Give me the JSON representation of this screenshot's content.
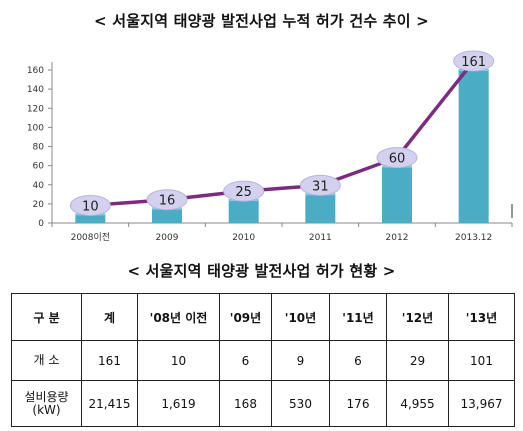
{
  "titles": {
    "chart": "< 서울지역 태양광 발전사업 누적 허가 건수 추이 >",
    "table": "< 서울지역 태양광 발전사업 허가 현황 >"
  },
  "colors": {
    "bar": "#4bacc6",
    "line": "#7b2c7e",
    "marker": "#d4d1ee"
  },
  "chart_data": {
    "type": "bar",
    "categories": [
      "2008이전",
      "2009",
      "2010",
      "2011",
      "2012",
      "2013.12"
    ],
    "values": [
      10,
      16,
      25,
      31,
      60,
      161
    ],
    "data_labels": [
      "10",
      "16",
      "25",
      "31",
      "60",
      "161"
    ],
    "ylim": [
      0,
      160
    ],
    "yticks": [
      "0",
      "20",
      "40",
      "60",
      "80",
      "100",
      "120",
      "140",
      "160"
    ],
    "overlay": "line",
    "grid": false,
    "legend": "none"
  },
  "table": {
    "headers": [
      "구 분",
      "계",
      "'08년 이전",
      "'09년",
      "'10년",
      "'11년",
      "'12년",
      "'13년"
    ],
    "rows": [
      {
        "label": [
          "개 소"
        ],
        "cells": [
          "161",
          "10",
          "6",
          "9",
          "6",
          "29",
          "101"
        ]
      },
      {
        "label": [
          "설비용량",
          "(kW)"
        ],
        "cells": [
          "21,415",
          "1,619",
          "168",
          "530",
          "176",
          "4,955",
          "13,967"
        ]
      }
    ]
  }
}
